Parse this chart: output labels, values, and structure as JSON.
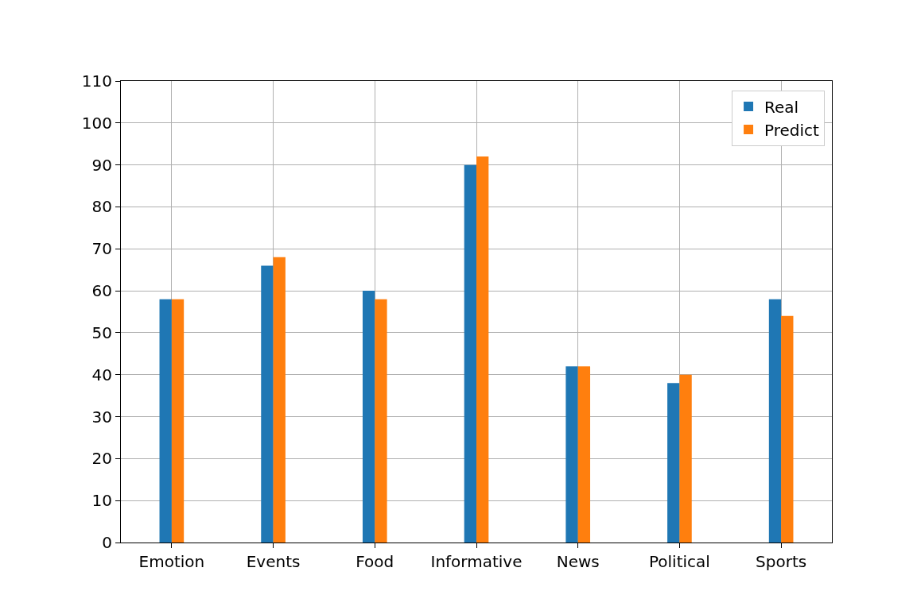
{
  "chart_data": {
    "type": "bar",
    "categories": [
      "Emotion",
      "Events",
      "Food",
      "Informative",
      "News",
      "Political",
      "Sports"
    ],
    "series": [
      {
        "name": "Real",
        "color": "#1f77b4",
        "values": [
          58,
          66,
          60,
          90,
          42,
          38,
          58
        ]
      },
      {
        "name": "Predict",
        "color": "#ff7f0e",
        "values": [
          58,
          68,
          58,
          92,
          42,
          40,
          54
        ]
      }
    ],
    "ylim": [
      0,
      110
    ],
    "yticks": [
      0,
      10,
      20,
      30,
      40,
      50,
      60,
      70,
      80,
      90,
      100,
      110
    ],
    "grid": true,
    "legend": "top right"
  }
}
